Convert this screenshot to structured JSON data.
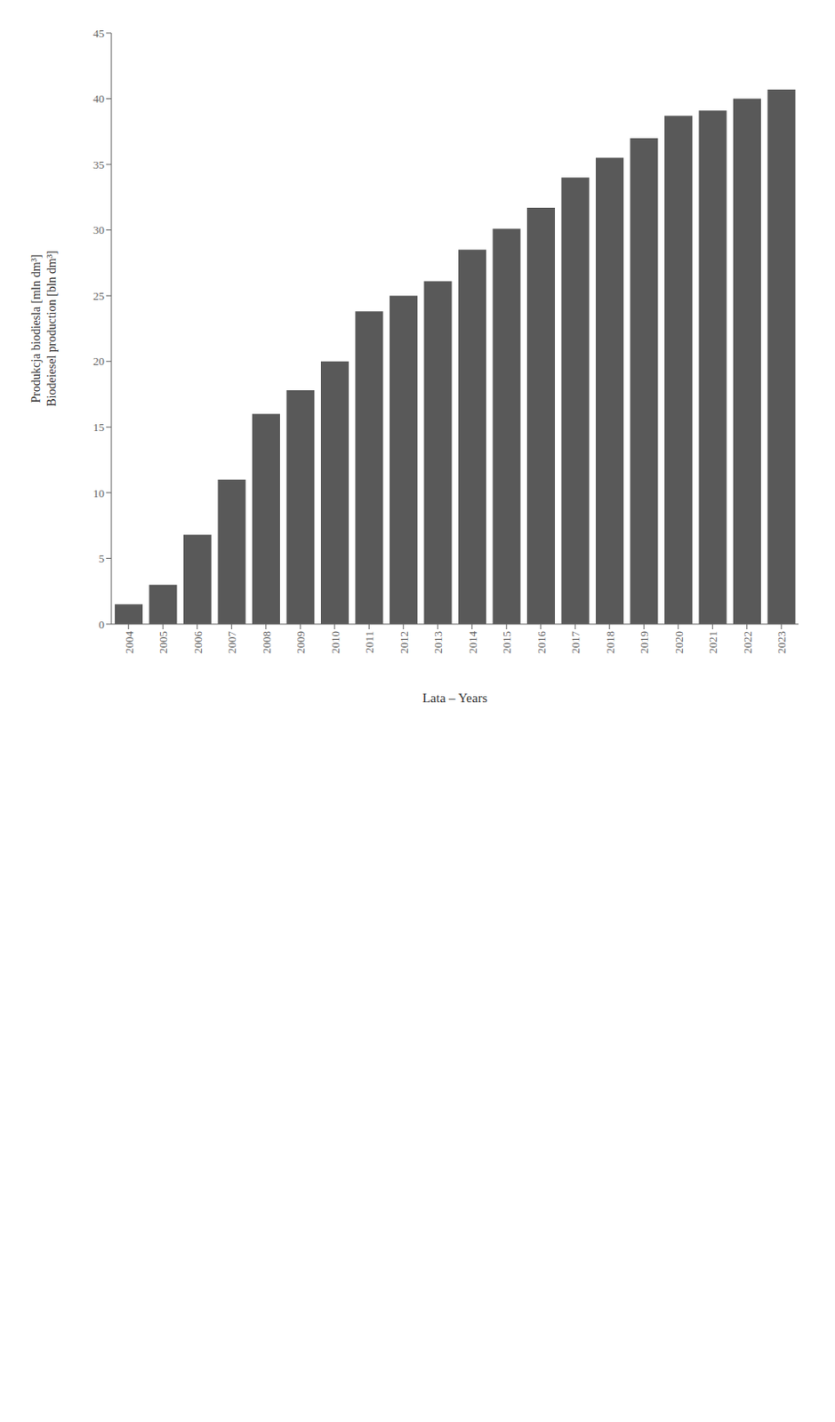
{
  "chart_data": {
    "type": "bar",
    "categories": [
      "2004",
      "2005",
      "2006",
      "2007",
      "2008",
      "2009",
      "2010",
      "2011",
      "2012",
      "2013",
      "2014",
      "2015",
      "2016",
      "2017",
      "2018",
      "2019",
      "2020",
      "2021",
      "2022",
      "2023"
    ],
    "values": [
      1.5,
      3.0,
      6.8,
      11.0,
      16.0,
      17.8,
      20.0,
      23.8,
      25.0,
      26.1,
      28.5,
      30.1,
      31.7,
      34.0,
      35.5,
      37.0,
      38.7,
      39.1,
      40.0,
      40.7
    ],
    "color": "#595959",
    "xlabel": "Lata – Years",
    "ylabel": "Produkcja biodiesla [mln dm³]\nBiodeiesel production [bln dm³]",
    "ylim": [
      0,
      45
    ],
    "yticks": [
      0,
      5,
      10,
      15,
      20,
      25,
      30,
      35,
      40,
      45
    ],
    "grid": false
  }
}
